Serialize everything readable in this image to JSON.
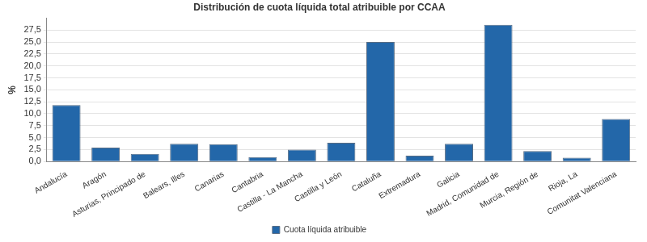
{
  "chart_data": {
    "type": "bar",
    "title": "Distribución de cuota líquida total atribuible por CCAA",
    "y_label": "%",
    "categories": [
      "Andalucía",
      "Aragón",
      "Asturias, Principado de",
      "Balears, Illes",
      "Canarias",
      "Cantabria",
      "Castilla - La Mancha",
      "Castilla y León",
      "Cataluña",
      "Extremadura",
      "Galicia",
      "Madrid, Comunidad de",
      "Murcia, Región de",
      "Rioja, La",
      "Comunitat Valenciana"
    ],
    "series": [
      {
        "name": "Cuota líquida atribuible",
        "color": "#2367a9",
        "values": [
          11.8,
          2.9,
          1.6,
          3.7,
          3.6,
          0.9,
          2.5,
          3.9,
          25.0,
          1.2,
          3.7,
          28.6,
          2.2,
          0.8,
          8.9
        ]
      }
    ],
    "ylim": [
      0,
      30
    ],
    "yticks": [
      {
        "value": 0,
        "label": "0,0"
      },
      {
        "value": 2.5,
        "label": "2,5"
      },
      {
        "value": 5,
        "label": "5,0"
      },
      {
        "value": 7.5,
        "label": "7,5"
      },
      {
        "value": 10,
        "label": "10,0"
      },
      {
        "value": 12.5,
        "label": "12,5"
      },
      {
        "value": 15,
        "label": "15,0"
      },
      {
        "value": 17.5,
        "label": "17,5"
      },
      {
        "value": 20,
        "label": "20,0"
      },
      {
        "value": 22.5,
        "label": "22,5"
      },
      {
        "value": 25,
        "label": "25,0"
      },
      {
        "value": 27.5,
        "label": "27,5"
      }
    ],
    "grid": true,
    "legend": "bottom"
  }
}
